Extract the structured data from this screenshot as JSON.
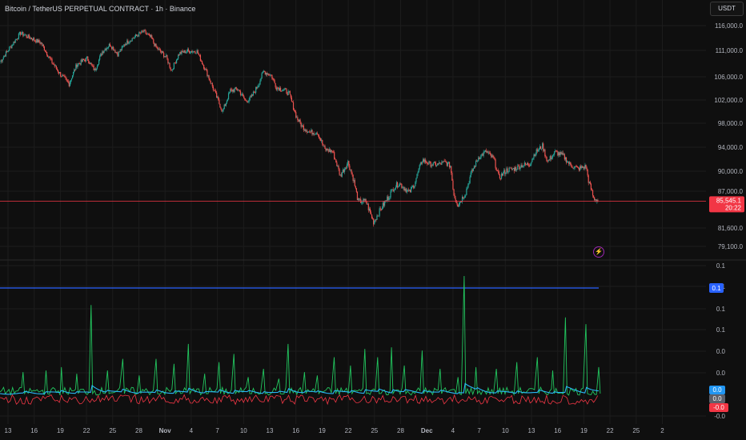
{
  "header": {
    "title": "Bitcoin / TetherUS PERPETUAL CONTRACT · 1h · Binance",
    "currency": "USDT"
  },
  "colors": {
    "background": "#0f0f0f",
    "grid": "#1c1c1c",
    "up": "#26a69a",
    "down": "#ef5350",
    "price_line": "#f23645",
    "threshold": "#2962ff",
    "osc_green": "#22c55e",
    "osc_blue": "#29b6f6",
    "osc_red": "#f23645",
    "axis_text": "#b2b5be"
  },
  "icons": {
    "lightning": "lightning-icon"
  },
  "chart_data": [
    {
      "type": "line",
      "name": "price-panel",
      "x_ticks": [
        "13",
        "16",
        "19",
        "22",
        "25",
        "28",
        "Nov",
        "4",
        "7",
        "10",
        "13",
        "16",
        "19",
        "22",
        "25",
        "28",
        "Dec",
        "4",
        "7",
        "10",
        "13",
        "16",
        "19",
        "22",
        "25",
        "2"
      ],
      "y_ticks": [
        "116,000.0",
        "111,000.0",
        "106,000.0",
        "102,000.0",
        "98,000.0",
        "94,000.0",
        "90,000.0",
        "87,000.0",
        "81,600.0",
        "79,100.0"
      ],
      "ylim": [
        78000,
        118000
      ],
      "grid": true,
      "price_path": [
        [
          0,
          108800
        ],
        [
          4,
          114500
        ],
        [
          8,
          112500
        ],
        [
          10,
          109000
        ],
        [
          12,
          106200
        ],
        [
          13.5,
          104800
        ],
        [
          15,
          108300
        ],
        [
          17,
          109500
        ],
        [
          18.5,
          107200
        ],
        [
          20,
          110800
        ],
        [
          21.5,
          112200
        ],
        [
          23,
          110300
        ],
        [
          24.5,
          112400
        ],
        [
          26,
          113500
        ],
        [
          28,
          114800
        ],
        [
          29.5,
          113600
        ],
        [
          30.5,
          111600
        ],
        [
          32.5,
          109700
        ],
        [
          33.5,
          107200
        ],
        [
          35,
          110400
        ],
        [
          36.5,
          110900
        ],
        [
          38.5,
          110800
        ],
        [
          40.5,
          106600
        ],
        [
          42,
          103200
        ],
        [
          43.5,
          100000
        ],
        [
          45,
          103600
        ],
        [
          46.5,
          103900
        ],
        [
          48,
          101800
        ],
        [
          49,
          102300
        ],
        [
          50.5,
          104700
        ],
        [
          51.5,
          107000
        ],
        [
          53,
          106300
        ],
        [
          54,
          104200
        ],
        [
          55.5,
          103700
        ],
        [
          56.5,
          103100
        ],
        [
          58,
          98900
        ],
        [
          59,
          97500
        ],
        [
          60.5,
          96500
        ],
        [
          62,
          96500
        ],
        [
          63.5,
          93600
        ],
        [
          65,
          93300
        ],
        [
          66.5,
          89300
        ],
        [
          68,
          91500
        ],
        [
          69,
          89000
        ],
        [
          70,
          85500
        ],
        [
          71.5,
          85500
        ],
        [
          73,
          82500
        ],
        [
          74.5,
          84500
        ],
        [
          76,
          86300
        ],
        [
          77,
          87600
        ],
        [
          78,
          88200
        ],
        [
          80,
          86800
        ],
        [
          81,
          88100
        ],
        [
          82.5,
          91900
        ],
        [
          84,
          91200
        ],
        [
          85.5,
          91100
        ],
        [
          87,
          91500
        ],
        [
          88,
          90900
        ],
        [
          88.7,
          86500
        ],
        [
          89.5,
          85000
        ],
        [
          91,
          86800
        ],
        [
          92,
          89500
        ],
        [
          93.5,
          92300
        ],
        [
          95,
          93300
        ],
        [
          96.5,
          92000
        ],
        [
          97.5,
          89000
        ],
        [
          99,
          90200
        ],
        [
          100.5,
          90400
        ],
        [
          102,
          91000
        ],
        [
          103.5,
          91200
        ],
        [
          104.5,
          93000
        ],
        [
          106,
          94200
        ],
        [
          107,
          91600
        ],
        [
          108.5,
          93200
        ],
        [
          110,
          92600
        ],
        [
          111.5,
          91000
        ],
        [
          113,
          90400
        ],
        [
          114.5,
          90800
        ],
        [
          115,
          88600
        ],
        [
          116,
          86000
        ],
        [
          117,
          85545.1
        ]
      ],
      "last_price": "85,545.1",
      "countdown": "20:22"
    },
    {
      "type": "line",
      "name": "oscillator-panel",
      "y_ticks": [
        "0.1",
        "0.1",
        "0.1",
        "0.1",
        "0.0",
        "0.0",
        "-0.0"
      ],
      "threshold_value": 0.13,
      "ylim": [
        -0.03,
        0.15
      ],
      "labels": {
        "threshold": "0.1",
        "blue": "0.0",
        "gray": "0.0",
        "red": "-0.0"
      },
      "spikes": [
        [
          4.5,
          0.024
        ],
        [
          9,
          0.026
        ],
        [
          12,
          0.03
        ],
        [
          15,
          0.022
        ],
        [
          17.8,
          0.105
        ],
        [
          21,
          0.026
        ],
        [
          24,
          0.04
        ],
        [
          27.2,
          0.02
        ],
        [
          30.5,
          0.04
        ],
        [
          34,
          0.034
        ],
        [
          36.8,
          0.058
        ],
        [
          40,
          0.022
        ],
        [
          42.8,
          0.036
        ],
        [
          45.7,
          0.046
        ],
        [
          48.5,
          0.018
        ],
        [
          51.5,
          0.028
        ],
        [
          54.5,
          0.016
        ],
        [
          56.3,
          0.058
        ],
        [
          59.5,
          0.024
        ],
        [
          62,
          0.02
        ],
        [
          65.3,
          0.042
        ],
        [
          68.5,
          0.032
        ],
        [
          71.3,
          0.052
        ],
        [
          73.8,
          0.042
        ],
        [
          76.5,
          0.054
        ],
        [
          79,
          0.032
        ],
        [
          82.5,
          0.05
        ],
        [
          86,
          0.028
        ],
        [
          89.5,
          0.018
        ],
        [
          90.7,
          0.14
        ],
        [
          93,
          0.03
        ],
        [
          97,
          0.028
        ],
        [
          101,
          0.036
        ],
        [
          105,
          0.042
        ],
        [
          108,
          0.026
        ],
        [
          110.5,
          0.09
        ],
        [
          114.5,
          0.082
        ],
        [
          117,
          0.03
        ]
      ],
      "blue_level": 0.007,
      "red_level": -0.006
    }
  ]
}
